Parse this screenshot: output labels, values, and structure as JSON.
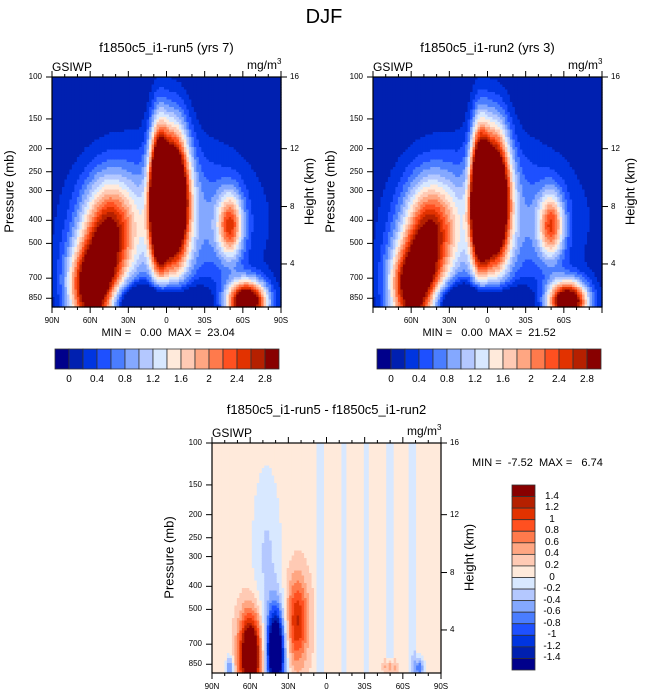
{
  "title": "DJF",
  "chart_data": [
    {
      "type": "heatmap",
      "title": "f1850c5_i1-run5 (yrs 7)",
      "left_string": "GSIWP",
      "right_string": "mg/m",
      "right_string_sup": "3",
      "xlabel": "",
      "ylabel": "Pressure (mb)",
      "y2label": "Height (km)",
      "x_ticks": [
        "90N",
        "60N",
        "30N",
        "0",
        "30S",
        "60S",
        "90S"
      ],
      "y_ticks": [
        "100",
        "150",
        "200",
        "250",
        "300",
        "400",
        "500",
        "700",
        "850"
      ],
      "y2_ticks": [
        "16",
        "12",
        "8",
        "4"
      ],
      "xlim": [
        90,
        -90
      ],
      "ylim_mb": [
        100,
        925
      ],
      "min_text": "MIN =   0.00  MAX =  23.04",
      "min": 0.0,
      "max": 23.04,
      "colorbar_labels": [
        "0",
        "0.4",
        "0.8",
        "1.2",
        "1.6",
        "2",
        "2.4",
        "2.8"
      ],
      "colorbar_levels": [
        0,
        0.2,
        0.4,
        0.6,
        0.8,
        1.0,
        1.2,
        1.4,
        1.6,
        1.8,
        2.0,
        2.2,
        2.4,
        2.6,
        2.8
      ],
      "colorbar_colors": [
        "#00008b",
        "#0020b0",
        "#0035e0",
        "#1e50ff",
        "#4a7dff",
        "#84a8ff",
        "#b4c8ff",
        "#d8e8ff",
        "#ffeadb",
        "#ffcab4",
        "#ffa682",
        "#ff7a4c",
        "#ff5020",
        "#e23200",
        "#b52000",
        "#880000"
      ],
      "features": [
        {
          "name": "NH midlatitude cloud",
          "lat_range": [
            80,
            35
          ],
          "p_range": [
            400,
            925
          ],
          "peak": "above 2.8"
        },
        {
          "name": "tropical deep convection",
          "lat_range": [
            15,
            -18
          ],
          "p_range": [
            190,
            560
          ],
          "peak": "above 2.8"
        },
        {
          "name": "SH midlatitude low cloud",
          "lat_range": [
            -45,
            -85
          ],
          "p_range": [
            700,
            925
          ],
          "peak": "above 2.8"
        },
        {
          "name": "SH upper maximum",
          "lat_range": [
            -40,
            -60
          ],
          "p_range": [
            350,
            500
          ],
          "peak": "about 2"
        }
      ]
    },
    {
      "type": "heatmap",
      "title": "f1850c5_i1-run2 (yrs 3)",
      "left_string": "GSIWP",
      "right_string": "mg/m",
      "right_string_sup": "3",
      "xlabel": "",
      "ylabel": "Pressure (mb)",
      "y2label": "Height (km)",
      "x_ticks": [
        "60N",
        "30N",
        "0",
        "30S",
        "60S"
      ],
      "y_ticks": [
        "100",
        "150",
        "200",
        "250",
        "300",
        "400",
        "500",
        "700",
        "850"
      ],
      "y2_ticks": [
        "16",
        "12",
        "8",
        "4"
      ],
      "xlim": [
        90,
        -90
      ],
      "ylim_mb": [
        100,
        925
      ],
      "min_text": "MIN =   0.00  MAX =  21.52",
      "min": 0.0,
      "max": 21.52,
      "colorbar_labels": [
        "0",
        "0.4",
        "0.8",
        "1.2",
        "1.6",
        "2",
        "2.4",
        "2.8"
      ],
      "colorbar_levels": [
        0,
        0.2,
        0.4,
        0.6,
        0.8,
        1.0,
        1.2,
        1.4,
        1.6,
        1.8,
        2.0,
        2.2,
        2.4,
        2.6,
        2.8
      ],
      "colorbar_colors": [
        "#00008b",
        "#0020b0",
        "#0035e0",
        "#1e50ff",
        "#4a7dff",
        "#84a8ff",
        "#b4c8ff",
        "#d8e8ff",
        "#ffeadb",
        "#ffcab4",
        "#ffa682",
        "#ff7a4c",
        "#ff5020",
        "#e23200",
        "#b52000",
        "#880000"
      ]
    },
    {
      "type": "heatmap",
      "title": "f1850c5_i1-run5 - f1850c5_i1-run2",
      "left_string": "GSIWP",
      "right_string": "mg/m",
      "right_string_sup": "3",
      "xlabel": "",
      "ylabel": "Pressure (mb)",
      "y2label": "Height (km)",
      "x_ticks": [
        "90N",
        "60N",
        "30N",
        "0",
        "30S",
        "60S",
        "90S"
      ],
      "y_ticks": [
        "100",
        "150",
        "200",
        "250",
        "300",
        "400",
        "500",
        "700",
        "850"
      ],
      "y2_ticks": [
        "16",
        "12",
        "8",
        "4"
      ],
      "xlim": [
        90,
        -90
      ],
      "ylim_mb": [
        100,
        925
      ],
      "min_text": "MIN =  -7.52  MAX =   6.74",
      "min": -7.52,
      "max": 6.74,
      "colorbar_labels": [
        "1.4",
        "1.2",
        "1",
        "0.8",
        "0.6",
        "0.4",
        "0.2",
        "0",
        "-0.2",
        "-0.4",
        "-0.6",
        "-0.8",
        "-1",
        "-1.2",
        "-1.4"
      ],
      "colorbar_levels": [
        -1.4,
        -1.2,
        -1.0,
        -0.8,
        -0.6,
        -0.4,
        -0.2,
        0,
        0.2,
        0.4,
        0.6,
        0.8,
        1.0,
        1.2,
        1.4
      ],
      "colorbar_colors": [
        "#00008b",
        "#0020b0",
        "#0035e0",
        "#1e50ff",
        "#4a7dff",
        "#84a8ff",
        "#b4c8ff",
        "#d8e8ff",
        "#ffeadb",
        "#ffcab4",
        "#ffa682",
        "#ff7a4c",
        "#ff5020",
        "#e23200",
        "#b52000",
        "#880000"
      ],
      "features": [
        {
          "name": "positive anomaly NH",
          "lat_range": [
            72,
            50
          ],
          "p_range": [
            400,
            925
          ],
          "peak": "above 1.4"
        },
        {
          "name": "negative anomaly NH",
          "lat_range": [
            48,
            32
          ],
          "p_range": [
            300,
            925
          ],
          "peak": "below -1.4"
        },
        {
          "name": "positive anomaly subtropics",
          "lat_range": [
            30,
            15
          ],
          "p_range": [
            250,
            800
          ],
          "peak": "about 1"
        }
      ]
    }
  ]
}
